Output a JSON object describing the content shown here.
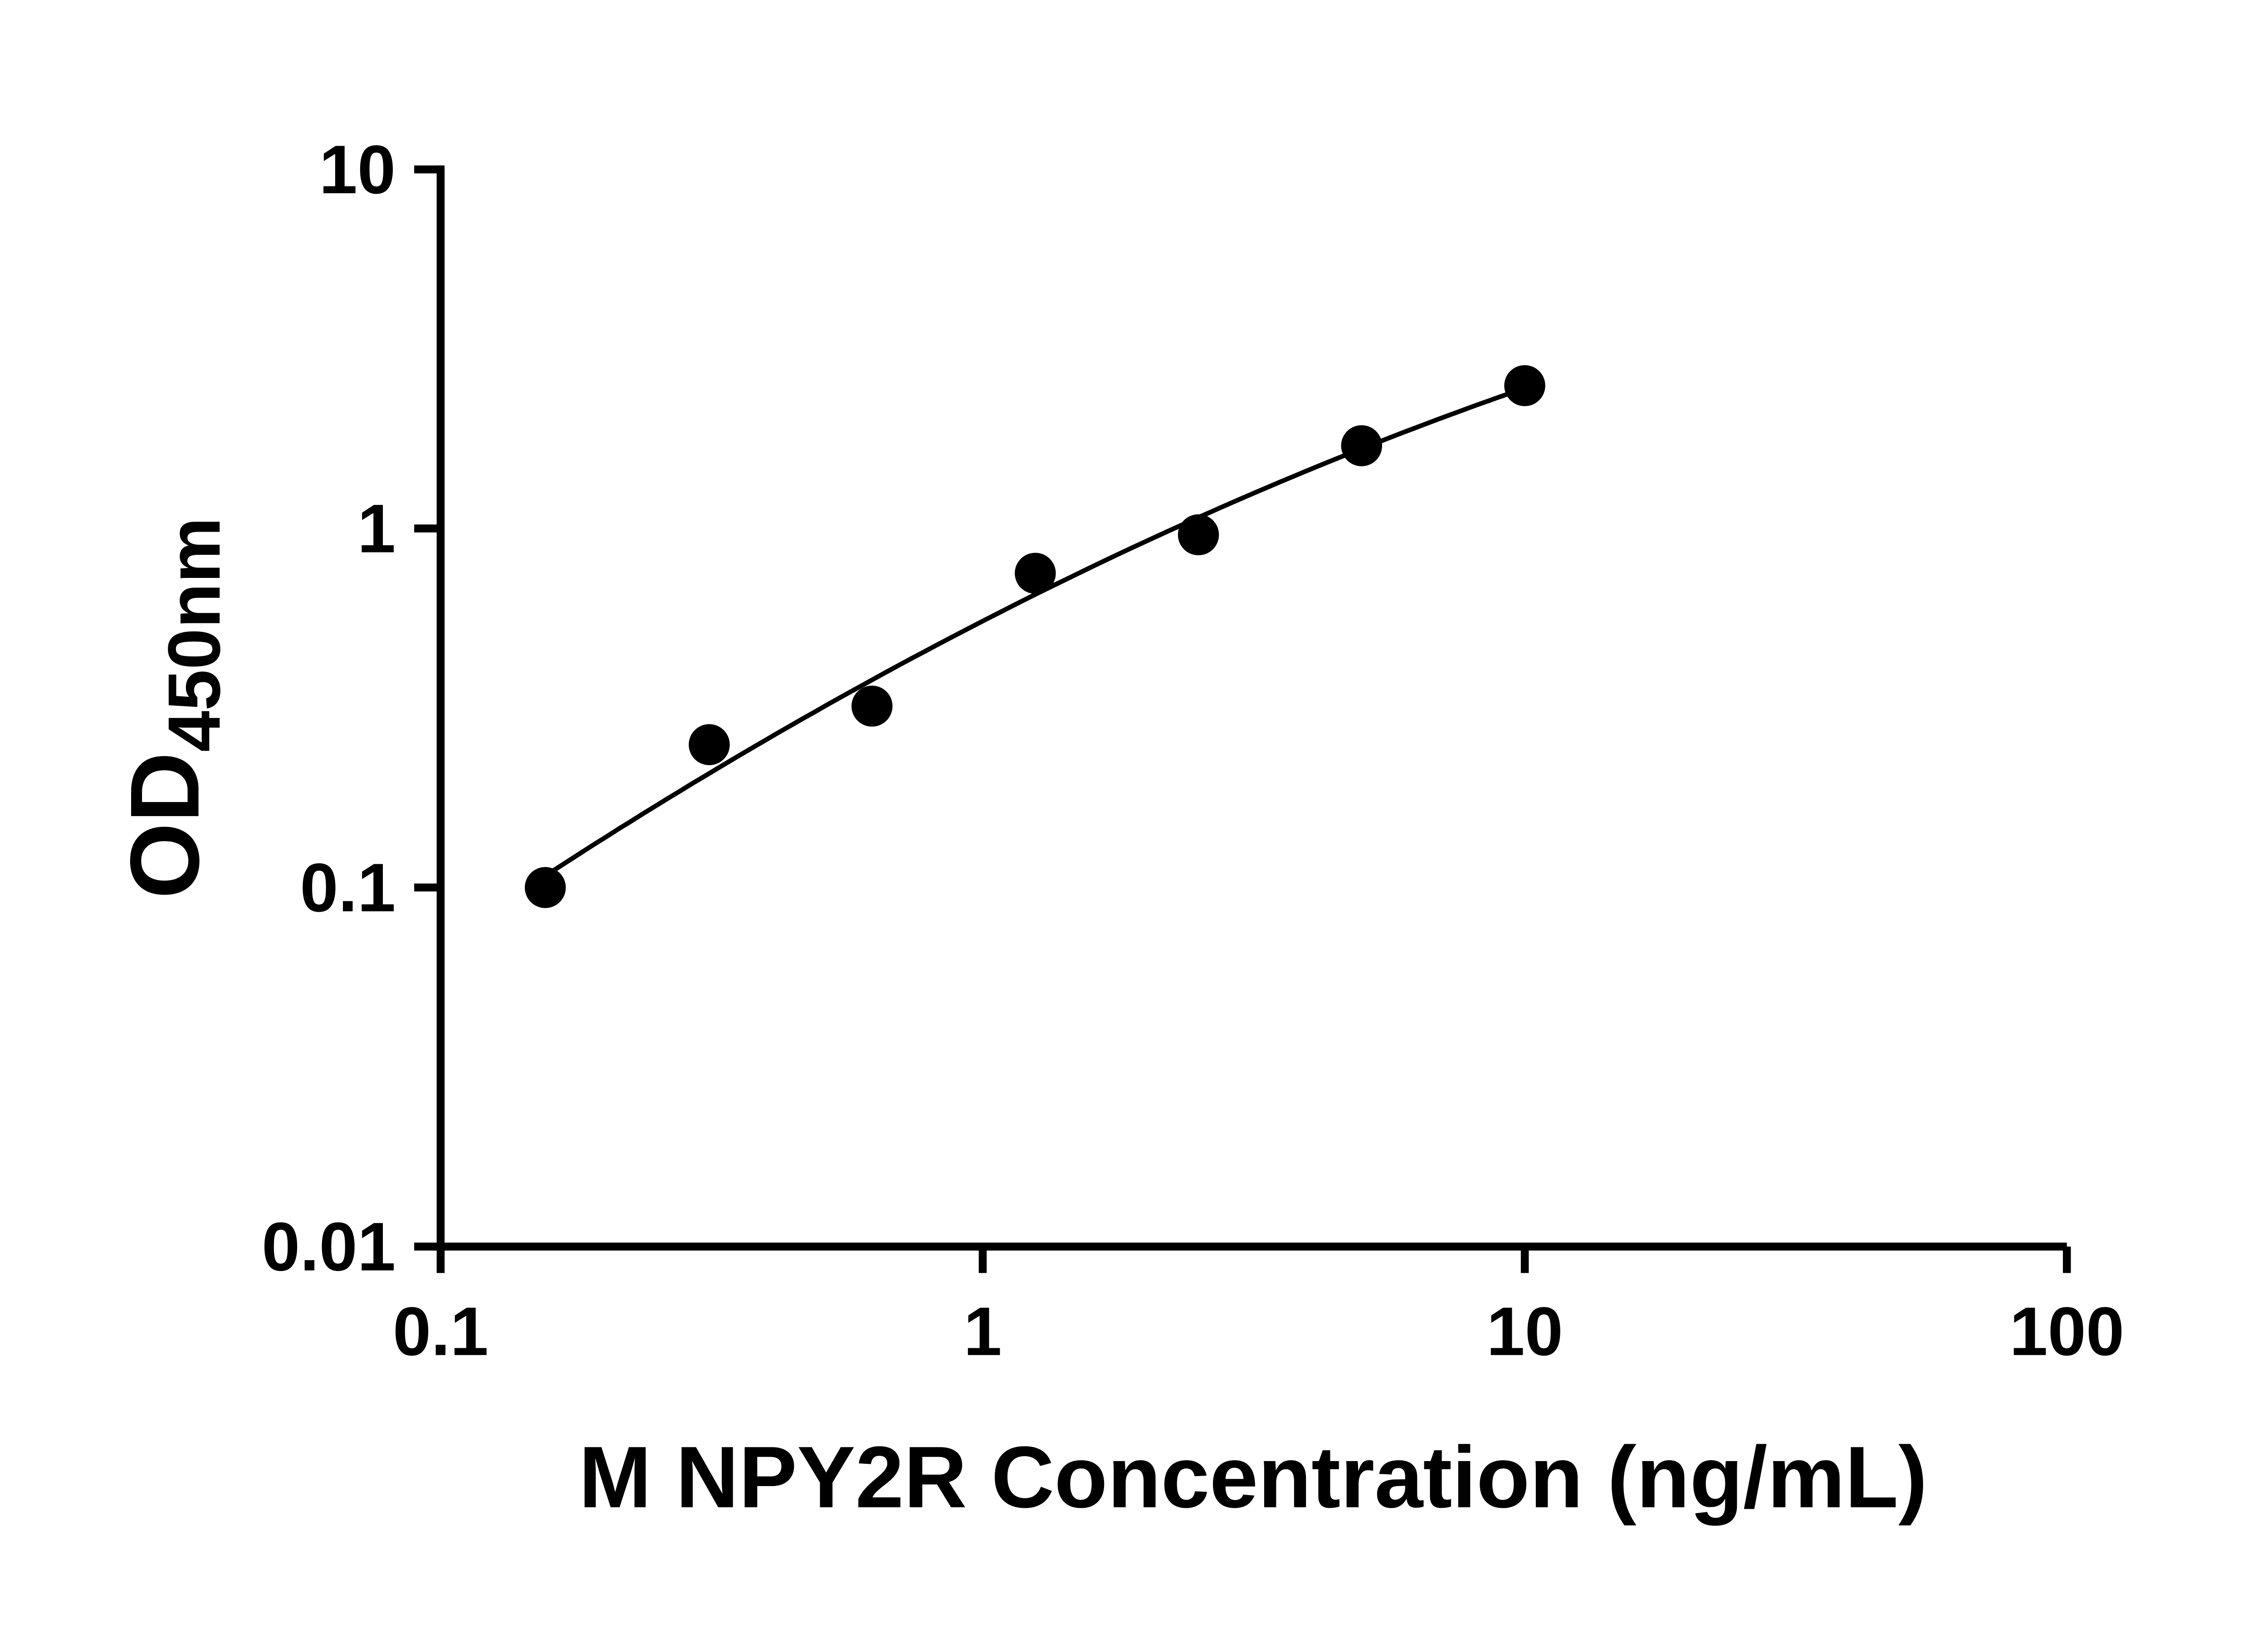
{
  "page": {
    "background": "#ffffff"
  },
  "chart_data": {
    "type": "scatter",
    "title": "",
    "xlabel": "M NPY2R Concentration (ng/mL)",
    "ylabel_main": "OD",
    "ylabel_sub": "450nm",
    "x_scale": "log",
    "y_scale": "log",
    "xlim": [
      0.1,
      100
    ],
    "ylim": [
      0.01,
      10
    ],
    "x_ticks": [
      0.1,
      1,
      10,
      100
    ],
    "x_tick_labels": [
      "0.1",
      "1",
      "10",
      "100"
    ],
    "y_ticks": [
      0.01,
      0.1,
      1,
      10
    ],
    "y_tick_labels": [
      "0.01",
      "0.1",
      "1",
      "10"
    ],
    "grid": false,
    "legend": "none",
    "points": [
      {
        "x": 0.156,
        "y": 0.1
      },
      {
        "x": 0.313,
        "y": 0.25
      },
      {
        "x": 0.625,
        "y": 0.32
      },
      {
        "x": 1.25,
        "y": 0.75
      },
      {
        "x": 2.5,
        "y": 0.96
      },
      {
        "x": 5,
        "y": 1.7
      },
      {
        "x": 10,
        "y": 2.5
      }
    ],
    "curve": {
      "style": "smooth-fit-through-points",
      "fit": "quadratic-in-log-log",
      "x_start": 0.156,
      "x_end": 10
    },
    "marker_color": "#000000",
    "line_color": "#000000",
    "axis_color": "#000000",
    "background": "#ffffff"
  }
}
